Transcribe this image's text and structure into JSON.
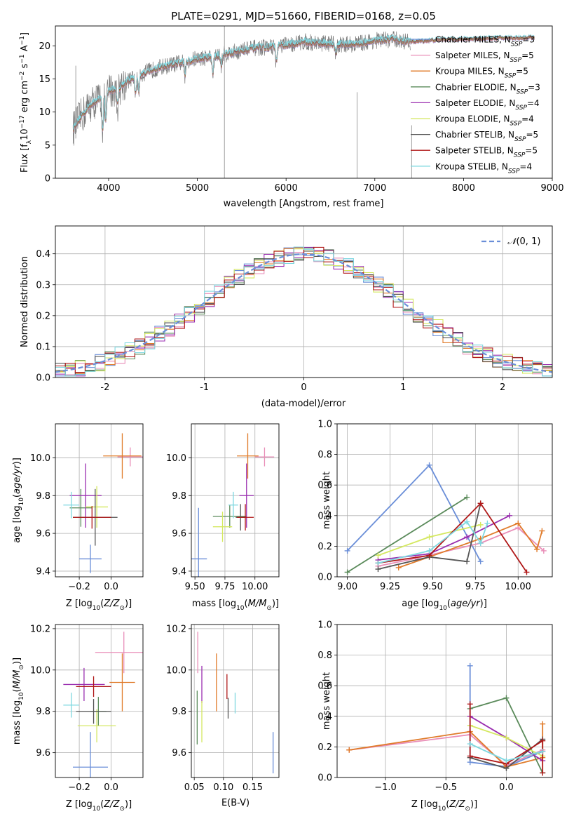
{
  "colors": {
    "Chabrier MILES": "#6a8ed8",
    "Salpeter MILES": "#e98eb8",
    "Kroupa MILES": "#e07b2a",
    "Chabrier ELODIE": "#5a8a5a",
    "Salpeter ELODIE": "#9a2eb0",
    "Kroupa ELODIE": "#d4e860",
    "Chabrier STELIB": "#555555",
    "Salpeter STELIB": "#b01818",
    "Kroupa STELIB": "#7fd8e0",
    "gaussian": "#6a8ed8"
  },
  "chart_data": [
    {
      "id": "spectrum",
      "type": "line",
      "title": "PLATE=0291, MJD=51660, FIBERID=0168, z=0.05",
      "xlabel": "wavelength [Angstrom, rest frame]",
      "ylabel": "Flux [f_λ10^-17 erg cm^-2 s^-1 A^-1]",
      "xlim": [
        3400,
        9000
      ],
      "ylim": [
        0,
        23
      ],
      "xticks": [
        4000,
        5000,
        6000,
        7000,
        8000,
        9000
      ],
      "yticks": [
        0,
        5,
        10,
        15,
        20
      ],
      "legend_position": "right",
      "series_names": [
        "Chabrier MILES, N_SSP=3",
        "Salpeter MILES, N_SSP=5",
        "Kroupa MILES, N_SSP=5",
        "Chabrier ELODIE, N_SSP=3",
        "Salpeter ELODIE, N_SSP=4",
        "Kroupa ELODIE, N_SSP=4",
        "Chabrier STELIB, N_SSP=5",
        "Salpeter STELIB, N_SSP=5",
        "Kroupa STELIB, N_SSP=4"
      ],
      "envelope_x": [
        3600,
        3700,
        3800,
        3900,
        4000,
        4100,
        4200,
        4300,
        4400,
        4500,
        4600,
        4700,
        4800,
        4900,
        5000,
        5200,
        5400,
        5600,
        5800,
        6000,
        6200,
        6400,
        6600,
        6800,
        7000,
        7200,
        7400,
        7600,
        7800,
        8000,
        8200,
        8400,
        8600,
        8800
      ],
      "envelope_y": [
        7.5,
        9.5,
        11.2,
        12.0,
        13.2,
        13.5,
        14.6,
        15.3,
        15.9,
        16.4,
        16.8,
        17.1,
        17.4,
        17.7,
        18.1,
        18.4,
        19.0,
        19.6,
        19.8,
        20.1,
        20.6,
        20.4,
        20.2,
        20.3,
        20.8,
        21.0,
        20.6,
        20.8,
        21.0,
        21.0,
        21.1,
        21.2,
        21.2,
        21.3
      ],
      "grid": false
    },
    {
      "id": "residuals",
      "type": "step",
      "xlabel": "(data-model)/error",
      "ylabel": "Normed distribution",
      "xlim": [
        -2.5,
        2.5
      ],
      "ylim": [
        0,
        0.49
      ],
      "xticks": [
        -2,
        -1,
        0,
        1,
        2
      ],
      "yticks": [
        0.0,
        0.1,
        0.2,
        0.3,
        0.4
      ],
      "legend": "N(0,1)",
      "legend_position": "top-right",
      "grid": true,
      "bin_width": 0.1
    },
    {
      "id": "z_age",
      "type": "errorbar",
      "xlabel": "Z [log10(Z/Z⊙)]",
      "ylabel": "age  [log10(age/yr)]",
      "xlim": [
        -0.35,
        0.2
      ],
      "ylim": [
        9.37,
        10.18
      ],
      "xticks": [
        -0.2,
        0.0
      ],
      "yticks": [
        9.4,
        9.6,
        9.8,
        10.0
      ],
      "grid": true,
      "points": [
        {
          "model": "Chabrier MILES",
          "x": -0.13,
          "y": 9.465,
          "xerr": 0.07,
          "yerr": 0.075
        },
        {
          "model": "Salpeter MILES",
          "x": 0.12,
          "y": 10.005,
          "xerr": 0.08,
          "yerr": 0.05
        },
        {
          "model": "Kroupa MILES",
          "x": 0.07,
          "y": 10.01,
          "xerr": 0.12,
          "yerr": 0.12
        },
        {
          "model": "Chabrier ELODIE",
          "x": -0.19,
          "y": 9.735,
          "xerr": 0.07,
          "yerr": 0.1
        },
        {
          "model": "Salpeter ELODIE",
          "x": -0.16,
          "y": 9.8,
          "xerr": 0.1,
          "yerr": 0.17
        },
        {
          "model": "Kroupa ELODIE",
          "x": -0.09,
          "y": 9.74,
          "xerr": 0.07,
          "yerr": 0.11
        },
        {
          "model": "Chabrier STELIB",
          "x": -0.1,
          "y": 9.685,
          "xerr": 0.14,
          "yerr": 0.15
        },
        {
          "model": "Salpeter STELIB",
          "x": -0.12,
          "y": 9.685,
          "xerr": 0.12,
          "yerr": 0.06
        },
        {
          "model": "Kroupa STELIB",
          "x": -0.25,
          "y": 9.75,
          "xerr": 0.05,
          "yerr": 0.07
        }
      ]
    },
    {
      "id": "mass_age",
      "type": "errorbar",
      "xlabel": "mass [log10(M/M⊙)]",
      "ylabel": "",
      "xlim": [
        9.47,
        10.2
      ],
      "ylim": [
        9.37,
        10.18
      ],
      "xticks": [
        9.5,
        9.75,
        10.0
      ],
      "yticks": [
        9.4,
        9.6,
        9.8,
        10.0
      ],
      "grid": true,
      "points": [
        {
          "model": "Chabrier MILES",
          "x": 9.53,
          "y": 9.465,
          "xerr": 0.07,
          "yerr": 0.27
        },
        {
          "model": "Salpeter MILES",
          "x": 10.08,
          "y": 10.005,
          "xerr": 0.08,
          "yerr": 0.05
        },
        {
          "model": "Kroupa MILES",
          "x": 9.94,
          "y": 10.01,
          "xerr": 0.09,
          "yerr": 0.12
        },
        {
          "model": "Chabrier ELODIE",
          "x": 9.79,
          "y": 9.69,
          "xerr": 0.14,
          "yerr": 0.06
        },
        {
          "model": "Salpeter ELODIE",
          "x": 9.93,
          "y": 9.8,
          "xerr": 0.06,
          "yerr": 0.17
        },
        {
          "model": "Kroupa ELODIE",
          "x": 9.73,
          "y": 9.635,
          "xerr": 0.08,
          "yerr": 0.08
        },
        {
          "model": "Chabrier STELIB",
          "x": 9.88,
          "y": 9.685,
          "xerr": 0.04,
          "yerr": 0.07
        },
        {
          "model": "Salpeter STELIB",
          "x": 9.92,
          "y": 9.685,
          "xerr": 0.07,
          "yerr": 0.07
        },
        {
          "model": "Kroupa STELIB",
          "x": 9.82,
          "y": 9.75,
          "xerr": 0.04,
          "yerr": 0.07
        }
      ]
    },
    {
      "id": "age_weight",
      "type": "line",
      "xlabel": "age  [log10(age/yr)]",
      "ylabel": "mass weight",
      "xlim": [
        8.94,
        10.2
      ],
      "ylim": [
        0,
        1
      ],
      "xticks": [
        9.0,
        9.25,
        9.5,
        9.75,
        10.0
      ],
      "yticks": [
        0.0,
        0.2,
        0.4,
        0.6,
        0.8,
        1.0
      ],
      "grid": true,
      "series": [
        {
          "name": "Chabrier MILES",
          "x": [
            9.0,
            9.48,
            9.78
          ],
          "y": [
            0.17,
            0.73,
            0.1
          ]
        },
        {
          "name": "Salpeter MILES",
          "x": [
            9.18,
            9.4,
            9.78,
            10.0,
            10.15
          ],
          "y": [
            0.07,
            0.12,
            0.22,
            0.32,
            0.17
          ]
        },
        {
          "name": "Kroupa MILES",
          "x": [
            9.3,
            9.48,
            9.78,
            10.0,
            10.11,
            10.14
          ],
          "y": [
            0.06,
            0.13,
            0.25,
            0.35,
            0.18,
            0.3
          ]
        },
        {
          "name": "Chabrier ELODIE",
          "x": [
            9.0,
            9.7
          ],
          "y": [
            0.03,
            0.52
          ]
        },
        {
          "name": "Salpeter ELODIE",
          "x": [
            9.18,
            9.48,
            9.7,
            9.95
          ],
          "y": [
            0.11,
            0.15,
            0.26,
            0.4
          ]
        },
        {
          "name": "Kroupa ELODIE",
          "x": [
            9.18,
            9.48,
            9.78
          ],
          "y": [
            0.14,
            0.26,
            0.34
          ]
        },
        {
          "name": "Chabrier STELIB",
          "x": [
            9.18,
            9.48,
            9.7,
            9.78
          ],
          "y": [
            0.05,
            0.13,
            0.1,
            0.48
          ]
        },
        {
          "name": "Salpeter STELIB",
          "x": [
            9.18,
            9.48,
            9.78,
            10.05
          ],
          "y": [
            0.09,
            0.14,
            0.48,
            0.03
          ]
        },
        {
          "name": "Kroupa STELIB",
          "x": [
            9.18,
            9.48,
            9.7,
            9.78,
            9.82
          ],
          "y": [
            0.09,
            0.17,
            0.36,
            0.22,
            0.35
          ]
        }
      ]
    },
    {
      "id": "z_mass",
      "type": "errorbar",
      "xlabel": "Z [log10(Z/Z⊙)]",
      "ylabel": "mass [log10(M/M⊙)]",
      "xlim": [
        -0.35,
        0.2
      ],
      "ylim": [
        9.48,
        10.22
      ],
      "xticks": [
        -0.2,
        0.0
      ],
      "yticks": [
        9.6,
        9.8,
        10.0,
        10.2
      ],
      "grid": true,
      "points": [
        {
          "model": "Chabrier MILES",
          "x": -0.13,
          "y": 9.53,
          "xerr": 0.11,
          "yerr": 0.17
        },
        {
          "model": "Salpeter MILES",
          "x": 0.08,
          "y": 10.085,
          "xerr": 0.18,
          "yerr": 0.1
        },
        {
          "model": "Kroupa MILES",
          "x": 0.07,
          "y": 9.94,
          "xerr": 0.08,
          "yerr": 0.14
        },
        {
          "model": "Chabrier ELODIE",
          "x": -0.08,
          "y": 9.8,
          "xerr": 0.05,
          "yerr": 0.07
        },
        {
          "model": "Salpeter ELODIE",
          "x": -0.17,
          "y": 9.93,
          "xerr": 0.13,
          "yerr": 0.08
        },
        {
          "model": "Kroupa ELODIE",
          "x": -0.09,
          "y": 9.73,
          "xerr": 0.12,
          "yerr": 0.08
        },
        {
          "model": "Chabrier STELIB",
          "x": -0.11,
          "y": 9.8,
          "xerr": 0.11,
          "yerr": 0.06
        },
        {
          "model": "Salpeter STELIB",
          "x": -0.11,
          "y": 9.92,
          "xerr": 0.11,
          "yerr": 0.05
        },
        {
          "model": "Kroupa STELIB",
          "x": -0.25,
          "y": 9.83,
          "xerr": 0.05,
          "yerr": 0.06
        }
      ]
    },
    {
      "id": "ebv_mass",
      "type": "errorbar",
      "xlabel": "E(B-V)",
      "ylabel": "",
      "xlim": [
        0.045,
        0.195
      ],
      "ylim": [
        9.48,
        10.22
      ],
      "xticks": [
        0.05,
        0.1,
        0.15
      ],
      "yticks": [
        9.6,
        9.8,
        10.0,
        10.2
      ],
      "grid": true,
      "points": [
        {
          "model": "Chabrier MILES",
          "x": 0.185,
          "y": 9.6,
          "xerr": 0,
          "yerr": 0.1
        },
        {
          "model": "Salpeter MILES",
          "x": 0.056,
          "y": 10.085,
          "xerr": 0,
          "yerr": 0.1
        },
        {
          "model": "Kroupa MILES",
          "x": 0.088,
          "y": 9.94,
          "xerr": 0,
          "yerr": 0.14
        },
        {
          "model": "Chabrier ELODIE",
          "x": 0.055,
          "y": 9.77,
          "xerr": 0,
          "yerr": 0.13
        },
        {
          "model": "Salpeter ELODIE",
          "x": 0.063,
          "y": 9.93,
          "xerr": 0,
          "yerr": 0.09
        },
        {
          "model": "Kroupa ELODIE",
          "x": 0.063,
          "y": 9.75,
          "xerr": 0,
          "yerr": 0.1
        },
        {
          "model": "Chabrier STELIB",
          "x": 0.108,
          "y": 9.815,
          "xerr": 0,
          "yerr": 0.05
        },
        {
          "model": "Salpeter STELIB",
          "x": 0.106,
          "y": 9.92,
          "xerr": 0,
          "yerr": 0.06
        },
        {
          "model": "Kroupa STELIB",
          "x": 0.12,
          "y": 9.84,
          "xerr": 0,
          "yerr": 0.05
        }
      ]
    },
    {
      "id": "z_weight",
      "type": "line",
      "xlabel": "Z [log10(Z/Z⊙)]",
      "ylabel": "mass weight",
      "xlim": [
        -1.4,
        0.38
      ],
      "ylim": [
        0,
        1
      ],
      "xticks": [
        -1.0,
        -0.5,
        0.0
      ],
      "yticks": [
        0.0,
        0.2,
        0.4,
        0.6,
        0.8,
        1.0
      ],
      "grid": true,
      "series": [
        {
          "name": "Chabrier MILES",
          "x": [
            -0.3,
            -0.3,
            0.0,
            0.3
          ],
          "y": [
            0.73,
            0.1,
            0.07,
            0.17
          ]
        },
        {
          "name": "Salpeter MILES",
          "x": [
            -1.3,
            -0.3,
            0.0,
            0.3
          ],
          "y": [
            0.18,
            0.28,
            0.08,
            0.18
          ]
        },
        {
          "name": "Kroupa MILES",
          "x": [
            -1.3,
            -0.3,
            0.0,
            0.3,
            0.3
          ],
          "y": [
            0.18,
            0.3,
            0.07,
            0.13,
            0.35
          ]
        },
        {
          "name": "Chabrier ELODIE",
          "x": [
            -0.3,
            0.0,
            0.3
          ],
          "y": [
            0.45,
            0.52,
            0.03
          ]
        },
        {
          "name": "Salpeter ELODIE",
          "x": [
            -0.3,
            0.0,
            0.3
          ],
          "y": [
            0.4,
            0.26,
            0.11
          ]
        },
        {
          "name": "Kroupa ELODIE",
          "x": [
            -0.3,
            0.0,
            0.3
          ],
          "y": [
            0.34,
            0.26,
            0.14
          ]
        },
        {
          "name": "Chabrier STELIB",
          "x": [
            -0.3,
            0.0,
            0.3
          ],
          "y": [
            0.13,
            0.06,
            0.25
          ]
        },
        {
          "name": "Salpeter STELIB",
          "x": [
            -0.3,
            -0.3,
            0.0,
            0.3,
            0.3
          ],
          "y": [
            0.48,
            0.14,
            0.09,
            0.24,
            0.03
          ]
        },
        {
          "name": "Kroupa STELIB",
          "x": [
            -0.3,
            0.0,
            0.3
          ],
          "y": [
            0.22,
            0.11,
            0.17
          ]
        }
      ]
    }
  ]
}
